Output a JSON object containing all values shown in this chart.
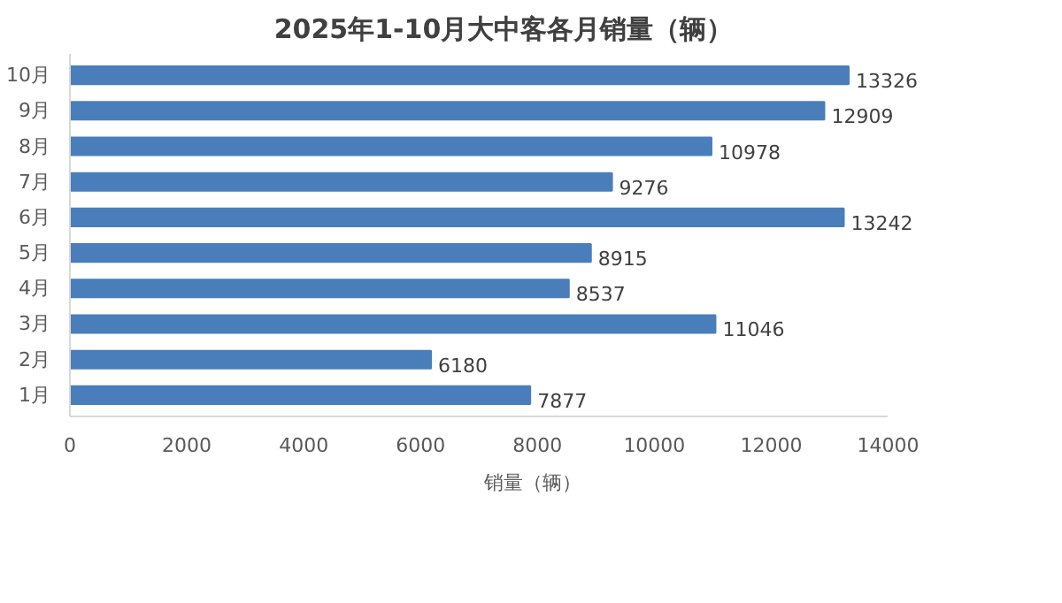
{
  "chart_data": {
    "type": "bar",
    "orientation": "horizontal",
    "title": "2025年1-10月大中客各月销量（辆）",
    "categories": [
      "10月",
      "9月",
      "8月",
      "7月",
      "6月",
      "5月",
      "4月",
      "3月",
      "2月",
      "1月"
    ],
    "series": [
      {
        "name": "销量（辆）",
        "color": "#4a7ebb",
        "values": [
          13326,
          12909,
          10978,
          9276,
          13242,
          8915,
          8537,
          11046,
          6180,
          7877
        ]
      }
    ],
    "xlim": [
      0,
      14000
    ],
    "xticks": [
      0,
      2000,
      4000,
      6000,
      8000,
      10000,
      12000,
      14000
    ],
    "data_labels": true,
    "grid": false,
    "legend": "bottom"
  }
}
